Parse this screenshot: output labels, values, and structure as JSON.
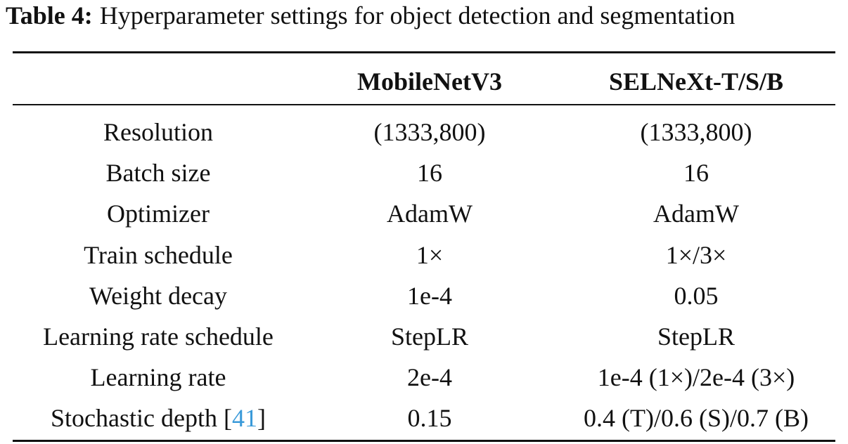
{
  "caption": {
    "label": "Table 4:",
    "text": "Hyperparameter settings for object detection and segmentation"
  },
  "table": {
    "header": [
      "",
      "MobileNetV3",
      "SELNeXt-T/S/B"
    ],
    "rows": [
      [
        "Resolution",
        "(1333,800)",
        "(1333,800)"
      ],
      [
        "Batch size",
        "16",
        "16"
      ],
      [
        "Optimizer",
        "AdamW",
        "AdamW"
      ],
      [
        "Train schedule",
        "1×",
        "1×/3×"
      ],
      [
        "Weight decay",
        "1e-4",
        "0.05"
      ],
      [
        "Learning rate schedule",
        "StepLR",
        "StepLR"
      ],
      [
        "Learning rate",
        "2e-4",
        "1e-4 (1×)/2e-4 (3×)"
      ],
      [
        {
          "before": "Stochastic depth [",
          "cite": "41",
          "after": "]"
        },
        "0.15",
        "0.4 (T)/0.6 (S)/0.7 (B)"
      ]
    ]
  }
}
